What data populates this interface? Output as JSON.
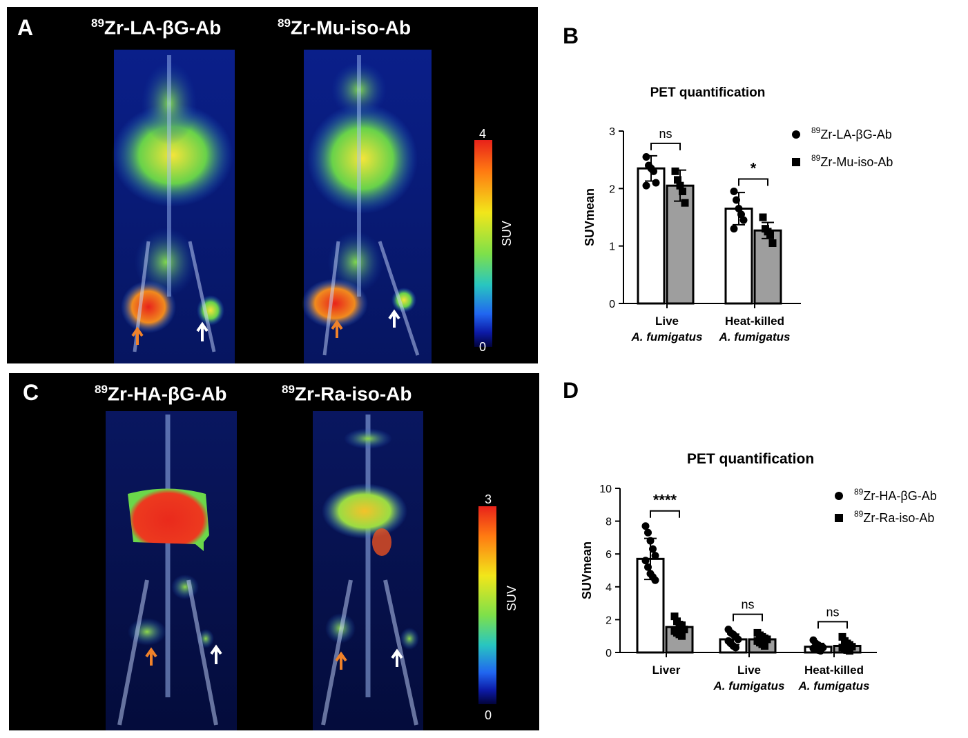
{
  "panel_a": {
    "letter": "A",
    "images": [
      {
        "isotope": "89",
        "label": "Zr-LA-βG-Ab"
      },
      {
        "isotope": "89",
        "label": "Zr-Mu-iso-Ab"
      }
    ],
    "colorbar": {
      "max": "4",
      "min": "0",
      "label": "SUV"
    }
  },
  "panel_c": {
    "letter": "C",
    "images": [
      {
        "isotope": "89",
        "label": "Zr-HA-βG-Ab"
      },
      {
        "isotope": "89",
        "label": "Zr-Ra-iso-Ab"
      }
    ],
    "colorbar": {
      "max": "3",
      "min": "0",
      "label": "SUV"
    }
  },
  "panel_b": {
    "letter": "B"
  },
  "panel_d": {
    "letter": "D"
  },
  "colors": {
    "arrow_orange": "#f0822a",
    "arrow_white": "#ffffff",
    "bar_gray": "#9e9e9e",
    "bar_white": "#ffffff"
  },
  "chart_data": [
    {
      "type": "bar",
      "title": "PET quantification",
      "ylabel": "SUVmean",
      "ylim": [
        0,
        3
      ],
      "yticks": [
        "0",
        "1",
        "2",
        "3"
      ],
      "categories": [
        {
          "line1": "Live",
          "line2": "A. fumigatus"
        },
        {
          "line1": "Heat-killed",
          "line2": "A. fumigatus"
        }
      ],
      "series": [
        {
          "isotope": "89",
          "name": "Zr-LA-βG-Ab",
          "marker": "circle",
          "fill": "#ffffff",
          "values": [
            2.35,
            1.65
          ],
          "sd": [
            0.22,
            0.28
          ],
          "points": [
            [
              2.55,
              2.4,
              2.35,
              2.3,
              2.1,
              2.05
            ],
            [
              1.95,
              1.8,
              1.65,
              1.55,
              1.45,
              1.3
            ]
          ]
        },
        {
          "isotope": "89",
          "name": "Zr-Mu-iso-Ab",
          "marker": "square",
          "fill": "#9e9e9e",
          "values": [
            2.05,
            1.27
          ],
          "sd": [
            0.27,
            0.14
          ],
          "points": [
            [
              2.3,
              2.15,
              2.05,
              1.95,
              1.75
            ],
            [
              1.5,
              1.3,
              1.25,
              1.2,
              1.05
            ]
          ]
        }
      ],
      "significance": [
        "ns",
        "*"
      ],
      "legend": "top-right"
    },
    {
      "type": "bar",
      "title": "PET quantification",
      "ylabel": "SUVmean",
      "ylim": [
        0,
        10
      ],
      "yticks": [
        "0",
        "2",
        "4",
        "6",
        "8",
        "10"
      ],
      "categories": [
        {
          "line1": "Liver",
          "line2": ""
        },
        {
          "line1": "Live",
          "line2": "A. fumigatus"
        },
        {
          "line1": "Heat-killed",
          "line2": "A. fumigatus"
        }
      ],
      "series": [
        {
          "isotope": "89",
          "name": "Zr-HA-βG-Ab",
          "marker": "circle",
          "fill": "#ffffff",
          "values": [
            5.7,
            0.8,
            0.35
          ],
          "sd": [
            1.25,
            0.32,
            0.2
          ],
          "points": [
            [
              7.7,
              7.3,
              6.8,
              6.3,
              5.9,
              5.6,
              5.2,
              4.8,
              4.6,
              4.4
            ],
            [
              1.4,
              1.2,
              1.1,
              0.95,
              0.8,
              0.7,
              0.55,
              0.4,
              0.3
            ],
            [
              0.75,
              0.55,
              0.45,
              0.35,
              0.3,
              0.25,
              0.2,
              0.15,
              0.1
            ]
          ]
        },
        {
          "isotope": "89",
          "name": "Zr-Ra-iso-Ab",
          "marker": "square",
          "fill": "#9e9e9e",
          "values": [
            1.55,
            0.8,
            0.4
          ],
          "sd": [
            0.3,
            0.25,
            0.25
          ],
          "points": [
            [
              2.2,
              1.9,
              1.7,
              1.6,
              1.4,
              1.3,
              1.2,
              1.1,
              1.0
            ],
            [
              1.2,
              1.05,
              0.95,
              0.85,
              0.8,
              0.7,
              0.6,
              0.5,
              0.4
            ],
            [
              0.95,
              0.7,
              0.55,
              0.45,
              0.35,
              0.3,
              0.2,
              0.15,
              0.1
            ]
          ]
        }
      ],
      "significance": [
        "****",
        "ns",
        "ns"
      ],
      "legend": "top-right"
    }
  ]
}
